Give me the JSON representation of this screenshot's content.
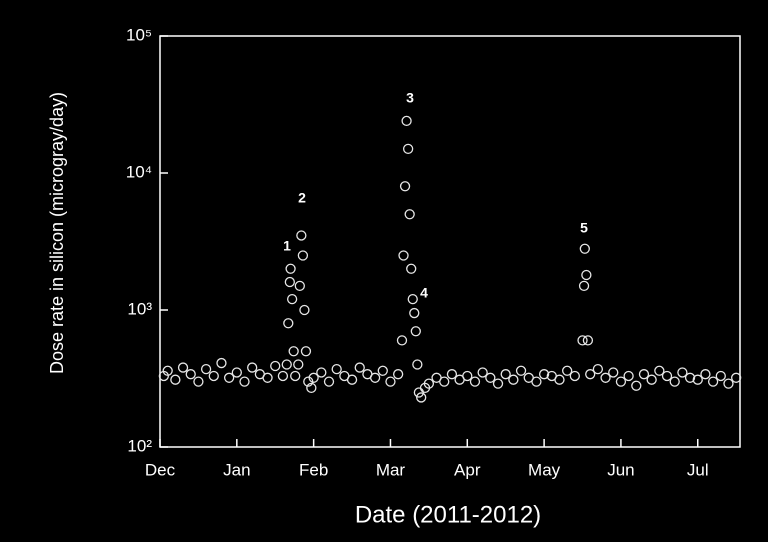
{
  "chart_data": {
    "type": "scatter",
    "x_label": "Date (2011-2012)",
    "y_label": "Dose rate in silicon (microgray/day)",
    "log_y": true,
    "grid": false,
    "color": "#e6e6e6",
    "xlim": [
      0,
      7.55
    ],
    "xticks": [
      {
        "value": 0,
        "label": "Dec"
      },
      {
        "value": 1,
        "label": "Jan"
      },
      {
        "value": 2,
        "label": "Feb"
      },
      {
        "value": 3,
        "label": "Mar"
      },
      {
        "value": 4,
        "label": "Apr"
      },
      {
        "value": 5,
        "label": "May"
      },
      {
        "value": 6,
        "label": "Jun"
      },
      {
        "value": 7,
        "label": "Jul"
      }
    ],
    "ylim": [
      100,
      100000
    ],
    "yticks": [
      {
        "value": 100,
        "label": "10²"
      },
      {
        "value": 1000,
        "label": "10³"
      },
      {
        "value": 10000,
        "label": "10⁴"
      },
      {
        "value": 100000,
        "label": "10⁵"
      }
    ],
    "annotations": [
      "1",
      "2",
      "3",
      "4",
      "5"
    ],
    "x": [
      0.05,
      0.1,
      0.2,
      0.3,
      0.4,
      0.5,
      0.6,
      0.7,
      0.8,
      0.9,
      1.0,
      1.1,
      1.2,
      1.3,
      1.4,
      1.5,
      1.6,
      1.65,
      1.67,
      1.69,
      1.7,
      1.72,
      1.74,
      1.76,
      1.8,
      1.82,
      1.84,
      1.86,
      1.88,
      1.9,
      1.93,
      1.97,
      2.0,
      2.1,
      2.2,
      2.3,
      2.4,
      2.5,
      2.6,
      2.7,
      2.8,
      2.9,
      3.0,
      3.1,
      3.15,
      3.17,
      3.19,
      3.21,
      3.23,
      3.25,
      3.27,
      3.29,
      3.31,
      3.33,
      3.35,
      3.37,
      3.4,
      3.45,
      3.5,
      3.6,
      3.7,
      3.8,
      3.9,
      4.0,
      4.1,
      4.2,
      4.3,
      4.4,
      4.5,
      4.6,
      4.7,
      4.8,
      4.9,
      5.0,
      5.1,
      5.2,
      5.3,
      5.4,
      5.5,
      5.52,
      5.53,
      5.55,
      5.57,
      5.6,
      5.7,
      5.8,
      5.9,
      6.0,
      6.1,
      6.2,
      6.3,
      6.4,
      6.5,
      6.6,
      6.7,
      6.8,
      6.9,
      7.0,
      7.1,
      7.2,
      7.3,
      7.4,
      7.5
    ],
    "values": [
      330,
      360,
      310,
      380,
      340,
      300,
      370,
      330,
      410,
      320,
      350,
      300,
      380,
      340,
      320,
      390,
      330,
      400,
      800,
      1600,
      2000,
      1200,
      500,
      330,
      400,
      1500,
      3500,
      2500,
      1000,
      500,
      300,
      270,
      320,
      350,
      300,
      370,
      330,
      310,
      380,
      340,
      320,
      360,
      300,
      340,
      600,
      2500,
      8000,
      24000,
      15000,
      5000,
      2000,
      1200,
      950,
      700,
      400,
      250,
      230,
      270,
      290,
      320,
      300,
      340,
      310,
      330,
      300,
      350,
      320,
      290,
      340,
      310,
      360,
      320,
      300,
      340,
      330,
      310,
      360,
      330,
      600,
      1500,
      2800,
      1800,
      600,
      340,
      370,
      320,
      350,
      300,
      330,
      280,
      340,
      310,
      360,
      330,
      300,
      350,
      320,
      310,
      340,
      300,
      330,
      290,
      320
    ]
  }
}
